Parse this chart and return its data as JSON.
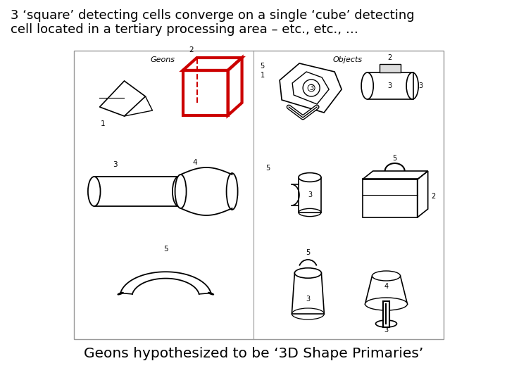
{
  "title_line1": "3 ‘square’ detecting cells converge on a single ‘cube’ detecting",
  "title_line2": "cell located in a tertiary processing area – etc., etc., …",
  "caption": "Geons hypothesized to be ‘3D Shape Primaries’",
  "bg_color": "#ffffff",
  "title_fontsize": 13.0,
  "caption_fontsize": 14.5,
  "red_color": "#cc0000",
  "border_color": "#999999",
  "geons_label": "Geons",
  "objects_label": "Objects"
}
